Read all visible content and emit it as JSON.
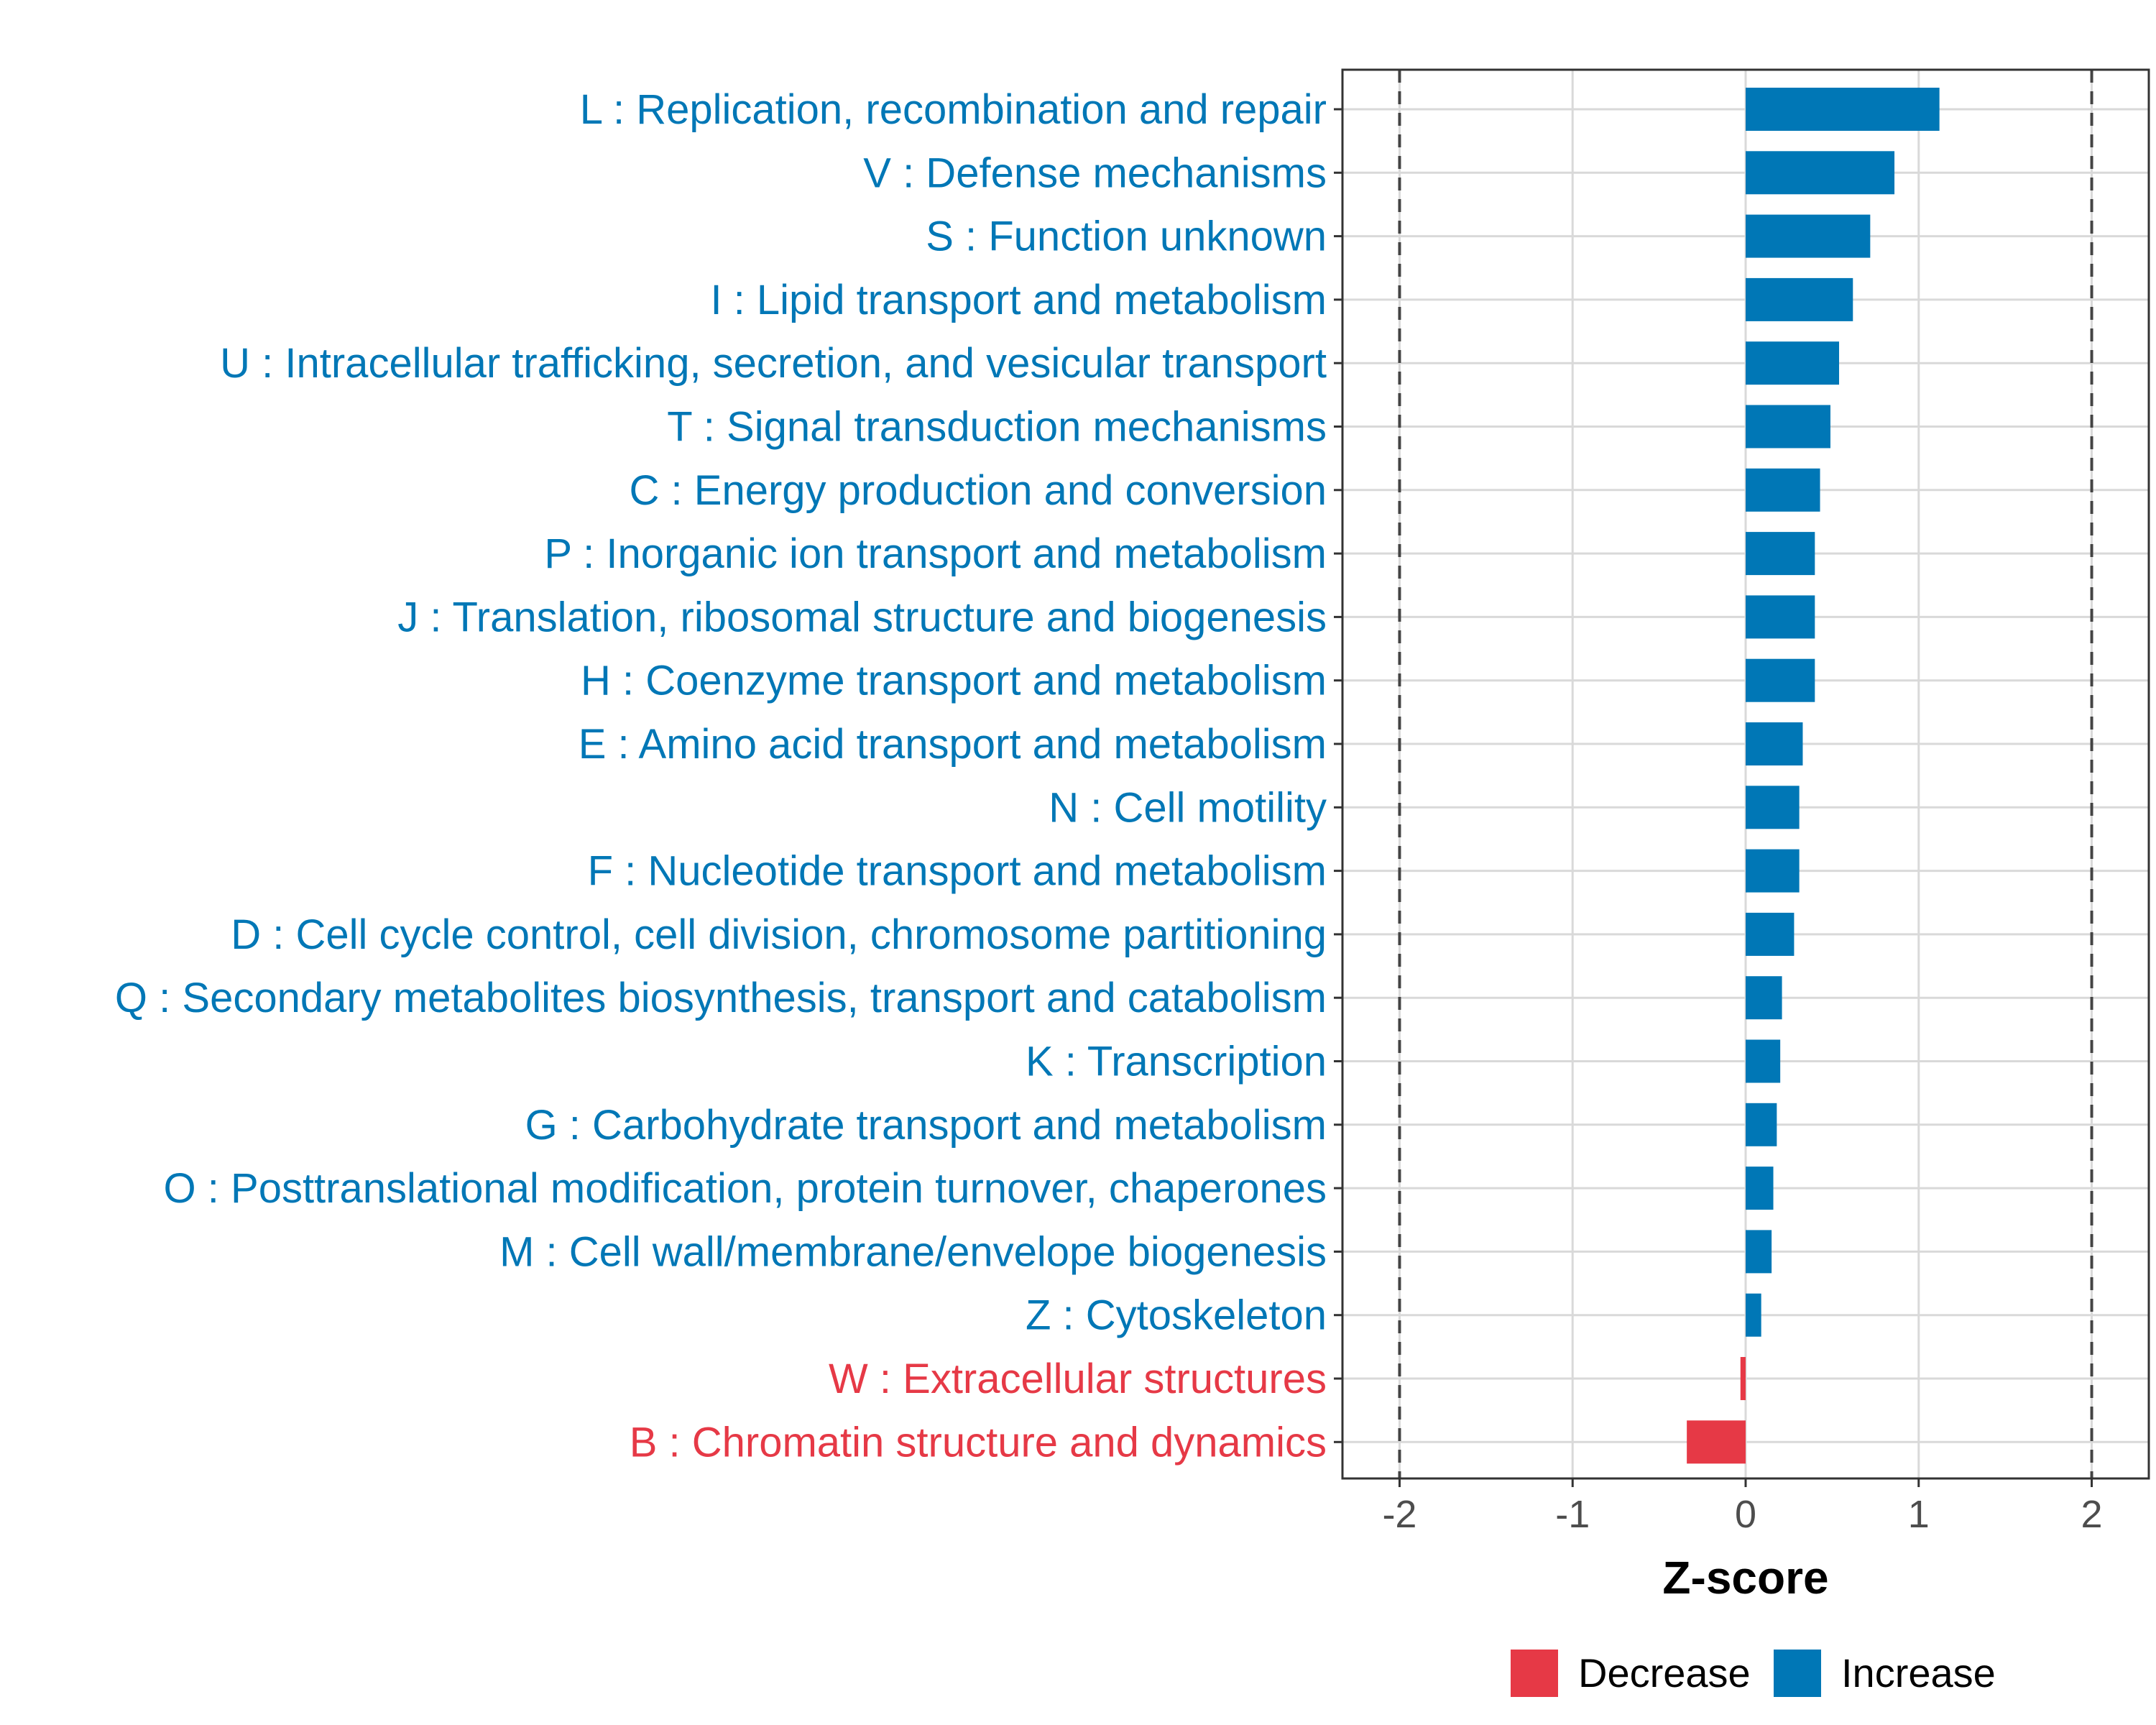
{
  "chart_data": {
    "type": "bar",
    "orientation": "horizontal",
    "xlabel": "Z-score",
    "xlim": [
      -2.33,
      2.33
    ],
    "xticks": [
      -2,
      -1,
      0,
      1,
      2
    ],
    "xtick_labels": [
      "-2",
      "-1",
      "0",
      "1",
      "2"
    ],
    "reference_lines": [
      -2,
      2
    ],
    "grid": true,
    "legend": {
      "placement": "bottom",
      "entries": [
        {
          "label": "Decrease",
          "color": "#E63946"
        },
        {
          "label": "Increase",
          "color": "#0077B6"
        }
      ]
    },
    "categories": [
      "L : Replication, recombination and repair",
      "V : Defense mechanisms",
      "S : Function unknown",
      "I : Lipid transport and metabolism",
      "U : Intracellular trafficking, secretion, and vesicular transport",
      "T : Signal transduction mechanisms",
      "C : Energy production and conversion",
      "P : Inorganic ion transport and metabolism",
      "J : Translation, ribosomal structure and biogenesis",
      "H : Coenzyme transport and metabolism",
      "E : Amino acid transport and metabolism",
      "N : Cell motility",
      "F : Nucleotide transport and metabolism",
      "D : Cell cycle control, cell division, chromosome partitioning",
      "Q : Secondary metabolites biosynthesis, transport and catabolism",
      "K : Transcription",
      "G : Carbohydrate transport and metabolism",
      "O : Posttranslational modification, protein turnover, chaperones",
      "M : Cell wall/membrane/envelope biogenesis",
      "Z : Cytoskeleton",
      "W : Extracellular structures",
      "B : Chromatin structure and dynamics"
    ],
    "values": [
      1.12,
      0.86,
      0.72,
      0.62,
      0.54,
      0.49,
      0.43,
      0.4,
      0.4,
      0.4,
      0.33,
      0.31,
      0.31,
      0.28,
      0.21,
      0.2,
      0.18,
      0.16,
      0.15,
      0.09,
      -0.03,
      -0.34
    ],
    "series": [
      {
        "name": "Increase",
        "color": "#0077B6"
      },
      {
        "name": "Decrease",
        "color": "#E63946"
      }
    ]
  }
}
